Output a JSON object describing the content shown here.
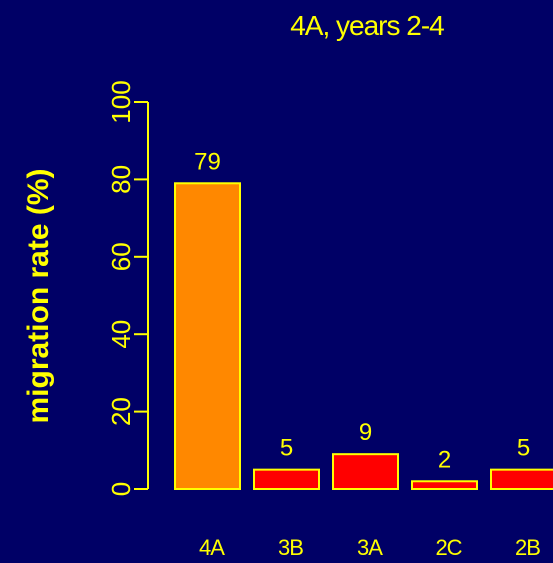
{
  "chart_data": {
    "type": "bar",
    "title": "4A, years 2-4",
    "xlabel": "",
    "ylabel": "migration rate (%)",
    "categories": [
      "4A",
      "3B",
      "3A",
      "2C",
      "2B"
    ],
    "values": [
      79,
      5,
      9,
      2,
      5
    ],
    "data_labels": [
      "79",
      "5",
      "9",
      "2",
      "5"
    ],
    "ylim": [
      0,
      100
    ],
    "yticks": [
      0,
      20,
      40,
      60,
      80,
      100
    ],
    "ytick_labels": [
      "0",
      "20",
      "40",
      "60",
      "80",
      "100"
    ],
    "grid": false,
    "legend": "none",
    "colors": {
      "background": "#000066",
      "text": "#ffff00",
      "bar_border": "#ffff00",
      "highlight_bar": "#ff8800",
      "other_bars": "#ff0000"
    },
    "highlight_category": "4A"
  }
}
